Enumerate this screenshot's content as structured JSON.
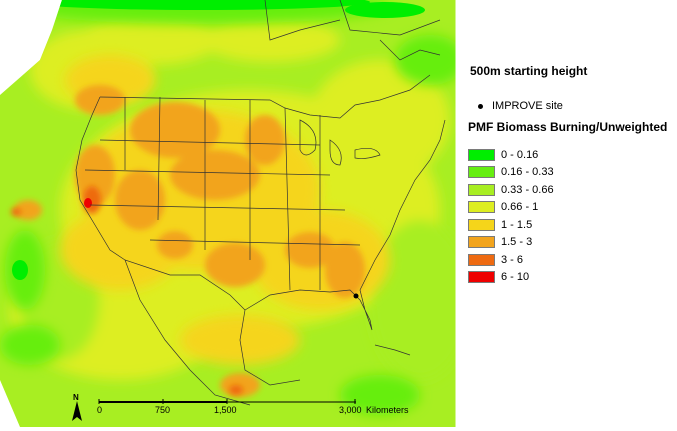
{
  "map": {
    "starting_height": "500m starting height",
    "site_legend_label": "IMPROVE site",
    "legend_title": "PMF Biomass Burning/Unweighted",
    "classes": [
      {
        "label": "0 - 0.16",
        "color": "#00ee00"
      },
      {
        "label": "0.16 - 0.33",
        "color": "#66ee11"
      },
      {
        "label": "0.33 - 0.66",
        "color": "#a8ee22"
      },
      {
        "label": "0.66 - 1",
        "color": "#ddee22"
      },
      {
        "label": "1 - 1.5",
        "color": "#f5d51a"
      },
      {
        "label": "1.5 - 3",
        "color": "#f2a41d"
      },
      {
        "label": "3 - 6",
        "color": "#ee6a11"
      },
      {
        "label": "6 - 10",
        "color": "#ee0000"
      }
    ],
    "scale_bar": {
      "ticks": [
        "0",
        "750",
        "1,500",
        "3,000"
      ],
      "unit": "Kilometers"
    },
    "north_arrow_letter": "N"
  }
}
